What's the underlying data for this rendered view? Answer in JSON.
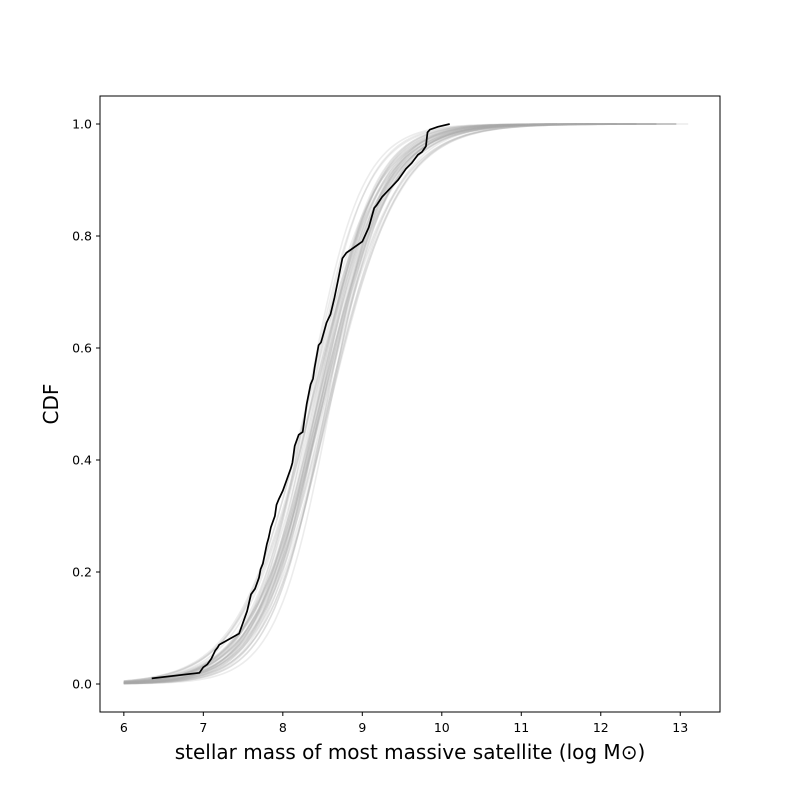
{
  "chart_data": {
    "type": "line",
    "title": "",
    "xlabel": "stellar mass of most massive satellite (log M⊙)",
    "ylabel": "CDF",
    "xlim": [
      5.7,
      13.5
    ],
    "ylim": [
      -0.05,
      1.05
    ],
    "xticks": [
      "6",
      "7",
      "8",
      "9",
      "10",
      "11",
      "12",
      "13"
    ],
    "yticks": [
      "0.0",
      "0.2",
      "0.4",
      "0.6",
      "0.8",
      "1.0"
    ],
    "grid": false,
    "legend": "none",
    "colors": {
      "observed": "#000000",
      "model": "#a8a8a8"
    },
    "model_curves": {
      "description_count": 40,
      "form": "logistic CDF",
      "center_range": [
        8.3,
        8.6
      ],
      "scale_range": [
        0.34,
        0.46
      ],
      "x_range": [
        6.0,
        13.15
      ]
    },
    "series": [
      {
        "x": [
          6.35,
          6.95,
          7.0,
          7.05,
          7.1,
          7.15,
          7.18,
          7.2,
          7.45,
          7.5,
          7.55,
          7.6,
          7.65,
          7.7,
          7.72,
          7.75,
          7.8,
          7.82,
          7.85,
          7.9,
          7.92,
          7.95,
          8.0,
          8.05,
          8.1,
          8.12,
          8.15,
          8.2,
          8.25,
          8.3,
          8.35,
          8.38,
          8.4,
          8.45,
          8.48,
          8.5,
          8.55,
          8.6,
          8.65,
          8.7,
          8.75,
          8.8,
          8.85,
          9.0,
          9.08,
          9.1,
          9.15,
          9.18,
          9.25,
          9.35,
          9.45,
          9.55,
          9.62,
          9.7,
          9.75,
          9.8,
          9.82,
          9.85,
          9.95,
          10.1
        ],
        "values": [
          0.01,
          0.02,
          0.03,
          0.035,
          0.045,
          0.06,
          0.065,
          0.07,
          0.09,
          0.11,
          0.13,
          0.16,
          0.17,
          0.19,
          0.205,
          0.215,
          0.25,
          0.26,
          0.28,
          0.3,
          0.32,
          0.33,
          0.345,
          0.365,
          0.385,
          0.395,
          0.425,
          0.445,
          0.45,
          0.5,
          0.535,
          0.545,
          0.565,
          0.605,
          0.61,
          0.62,
          0.645,
          0.66,
          0.69,
          0.725,
          0.76,
          0.77,
          0.775,
          0.79,
          0.815,
          0.825,
          0.85,
          0.855,
          0.87,
          0.885,
          0.9,
          0.92,
          0.93,
          0.945,
          0.95,
          0.96,
          0.985,
          0.99,
          0.995,
          1.0
        ]
      }
    ]
  }
}
